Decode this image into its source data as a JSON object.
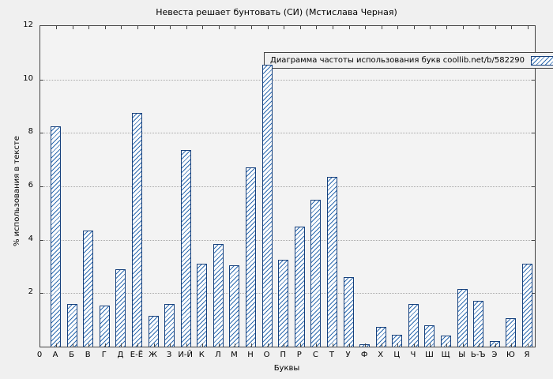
{
  "chart_data": {
    "type": "bar",
    "title": "Невеста решает бунтовать (СИ) (Мстислава Черная)",
    "legend": "Диаграмма частоты использования букв coollib.net/b/582290",
    "xlabel": "Буквы",
    "ylabel": "% использования в тексте",
    "origin_tick": "0",
    "categories": [
      "А",
      "Б",
      "В",
      "Г",
      "Д",
      "Е-Ё",
      "Ж",
      "З",
      "И-Й",
      "К",
      "Л",
      "М",
      "Н",
      "О",
      "П",
      "Р",
      "С",
      "Т",
      "У",
      "Ф",
      "Х",
      "Ц",
      "Ч",
      "Ш",
      "Щ",
      "Ы",
      "Ь-Ъ",
      "Э",
      "Ю",
      "Я"
    ],
    "values": [
      8.25,
      1.6,
      4.35,
      1.55,
      2.9,
      8.75,
      1.15,
      1.6,
      7.35,
      3.1,
      3.85,
      3.05,
      6.7,
      10.55,
      3.25,
      4.5,
      5.5,
      6.35,
      2.6,
      0.1,
      0.75,
      0.45,
      1.6,
      0.8,
      0.4,
      2.15,
      1.7,
      0.2,
      1.05,
      3.1
    ],
    "ylim": [
      0,
      12
    ],
    "yticks": [
      0,
      2,
      4,
      6,
      8,
      10,
      12
    ],
    "grid": "horizontal-dotted",
    "legend_position": "top-right-inside",
    "bar_fill": "diagonal-hatch",
    "bar_color": "#2f6cb0",
    "bar_border": "#16407c"
  }
}
